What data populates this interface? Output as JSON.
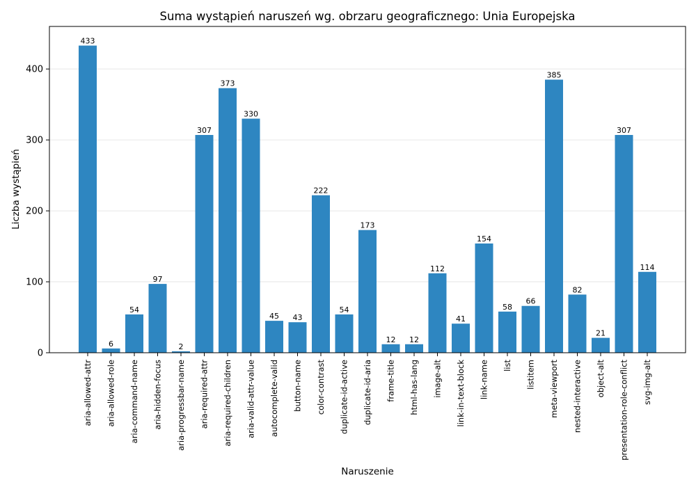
{
  "chart_data": {
    "type": "bar",
    "title": "Suma wystąpień naruszeń wg. obrzaru geograficznego: Unia Europejska",
    "xlabel": "Naruszenie",
    "ylabel": "Liczba wystąpień",
    "ylim": [
      0,
      460
    ],
    "yticks": [
      0,
      100,
      200,
      300,
      400
    ],
    "grid": "horizontal",
    "bar_color": "#2e86c1",
    "categories": [
      "aria-allowed-attr",
      "aria-allowed-role",
      "aria-command-name",
      "aria-hidden-focus",
      "aria-progressbar-name",
      "aria-required-attr",
      "aria-required-children",
      "aria-valid-attr-value",
      "autocomplete-valid",
      "button-name",
      "color-contrast",
      "duplicate-id-active",
      "duplicate-id-aria",
      "frame-title",
      "html-has-lang",
      "image-alt",
      "link-in-text-block",
      "link-name",
      "list",
      "listitem",
      "meta-viewport",
      "nested-interactive",
      "object-alt",
      "presentation-role-conflict",
      "svg-img-alt"
    ],
    "values": [
      433,
      6,
      54,
      97,
      2,
      307,
      373,
      330,
      45,
      43,
      222,
      54,
      173,
      12,
      12,
      112,
      41,
      154,
      58,
      66,
      385,
      82,
      21,
      307,
      114
    ]
  }
}
